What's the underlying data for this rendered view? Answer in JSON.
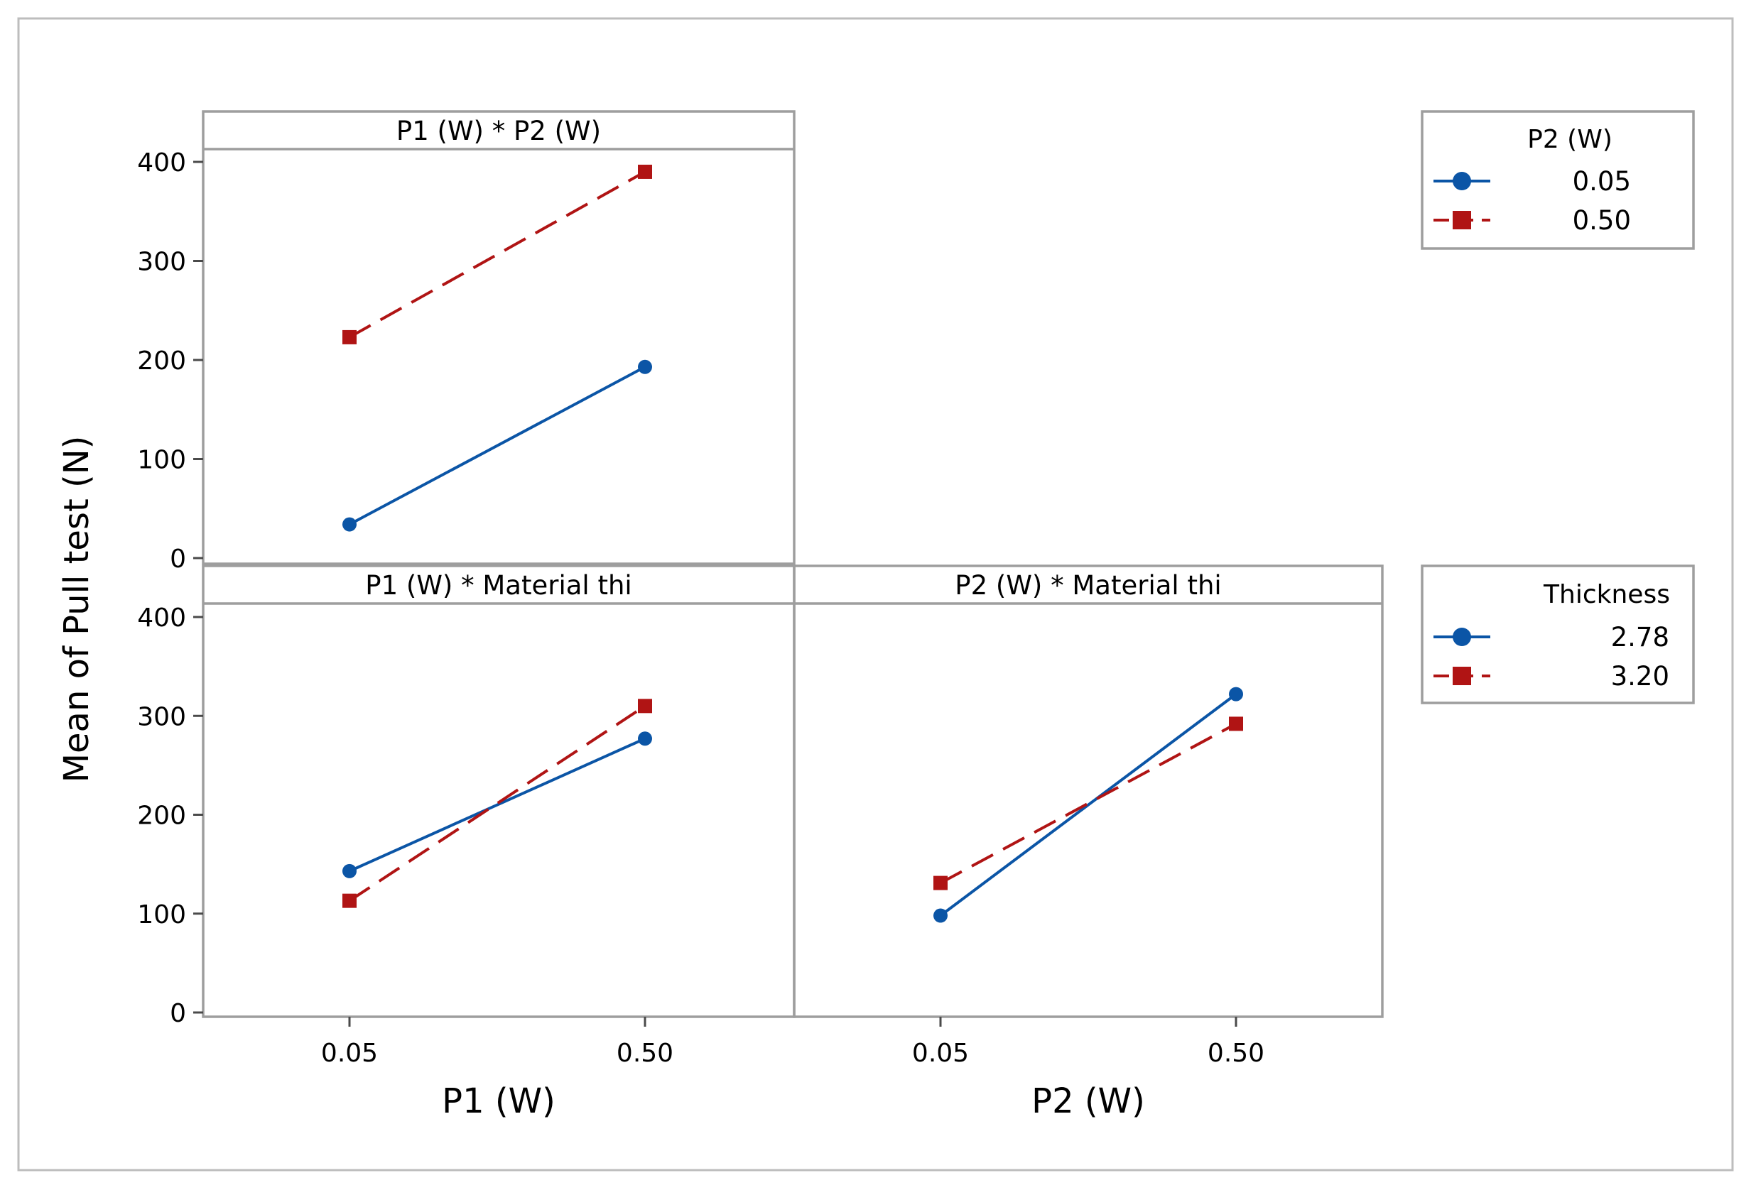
{
  "chart_data": {
    "type": "line",
    "title": "",
    "ylabel": "Mean of Pull test (N)",
    "ylim": [
      0,
      420
    ],
    "yticks": [
      0,
      100,
      200,
      300,
      400
    ],
    "colors": {
      "series1": "#0b55a6",
      "series2": "#b01414"
    },
    "panels": [
      {
        "id": "p1-p2",
        "strip_label": "P1 (W) * P2 (W)",
        "x": [
          "0.05",
          "0.50"
        ],
        "legend_group": "p2",
        "series": [
          {
            "name": "0.05",
            "values": [
              34,
              193
            ]
          },
          {
            "name": "0.50",
            "values": [
              223,
              390
            ]
          }
        ]
      },
      {
        "id": "p1-thick",
        "strip_label": "P1 (W) * Material thi",
        "x": [
          "0.05",
          "0.50"
        ],
        "xlabel": "P1 (W)",
        "legend_group": "thickness",
        "series": [
          {
            "name": "2.78",
            "values": [
              143,
              277
            ]
          },
          {
            "name": "3.20",
            "values": [
              113,
              310
            ]
          }
        ]
      },
      {
        "id": "p2-thick",
        "strip_label": "P2 (W) * Material thi",
        "x": [
          "0.05",
          "0.50"
        ],
        "xlabel": "P2 (W)",
        "legend_group": "thickness",
        "series": [
          {
            "name": "2.78",
            "values": [
              98,
              322
            ]
          },
          {
            "name": "3.20",
            "values": [
              131,
              292
            ]
          }
        ]
      }
    ],
    "legends": [
      {
        "id": "p2",
        "title": "P2 (W)",
        "entries": [
          "0.05",
          "0.50"
        ]
      },
      {
        "id": "thickness",
        "title": "Thickness",
        "entries": [
          "2.78",
          "3.20"
        ]
      }
    ]
  }
}
